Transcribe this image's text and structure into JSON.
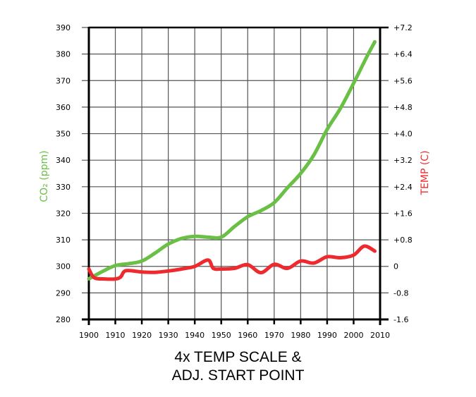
{
  "chart_data": {
    "type": "line",
    "title": [
      "4x TEMP SCALE &",
      "ADJ. START POINT"
    ],
    "xlabel": "",
    "ylabel_left": "CO₂ (ppm)",
    "ylabel_right": "TEMP (C)",
    "xlim": [
      1900,
      2010
    ],
    "ylim_left": [
      280,
      390
    ],
    "ylim_right": [
      -1.6,
      7.2
    ],
    "grid": true,
    "x_ticks": [
      "1900",
      "1910",
      "1920",
      "1930",
      "1940",
      "1950",
      "1960",
      "1970",
      "1980",
      "1990",
      "2000",
      "2010"
    ],
    "y_left_ticks": [
      "280",
      "290",
      "300",
      "310",
      "320",
      "330",
      "340",
      "350",
      "360",
      "370",
      "380",
      "390"
    ],
    "y_right_ticks": [
      "-1.6",
      "-0.8",
      "0",
      "+0.8",
      "+1.6",
      "+2.4",
      "+3.2",
      "+4.0",
      "+4.8",
      "+5.6",
      "+6.4",
      "+7.2"
    ],
    "colors": {
      "co2": "#6abf45",
      "temp": "#ee2a2e",
      "left_label": "#6abf45",
      "right_label": "#ee2a2e"
    },
    "series": [
      {
        "axis": "left",
        "color": "#6abf45",
        "x": [
          1900,
          1905,
          1910,
          1915,
          1920,
          1925,
          1930,
          1935,
          1940,
          1945,
          1950,
          1955,
          1960,
          1965,
          1970,
          1975,
          1980,
          1985,
          1990,
          1995,
          2000,
          2005,
          2008
        ],
        "y": [
          295.3,
          298,
          300.3,
          301,
          302,
          305,
          308.4,
          310.5,
          311.3,
          311,
          311,
          315,
          318.7,
          321,
          324,
          329.6,
          335,
          342,
          351.6,
          359.5,
          369,
          379,
          384.6
        ]
      },
      {
        "axis": "right",
        "color": "#ee2a2e",
        "x": [
          1900,
          1902,
          1906,
          1910,
          1912,
          1914,
          1920,
          1925,
          1930,
          1935,
          1940,
          1945,
          1947,
          1950,
          1955,
          1960,
          1965,
          1970,
          1975,
          1980,
          1985,
          1990,
          1995,
          2000,
          2004,
          2008
        ],
        "y": [
          -0.08,
          -0.34,
          -0.38,
          -0.38,
          -0.32,
          -0.13,
          -0.17,
          -0.18,
          -0.14,
          -0.08,
          0,
          0.19,
          -0.06,
          -0.08,
          -0.06,
          0.05,
          -0.19,
          0.06,
          -0.06,
          0.16,
          0.1,
          0.29,
          0.26,
          0.34,
          0.61,
          0.46
        ]
      }
    ]
  }
}
